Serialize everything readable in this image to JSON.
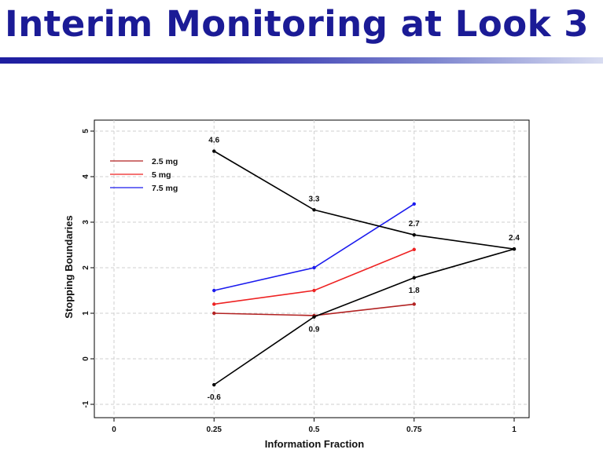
{
  "slide": {
    "title": "Interim Monitoring at Look 3"
  },
  "chart_data": {
    "type": "line",
    "title": "",
    "xlabel": "Information Fraction",
    "ylabel": "Stopping Boundaries",
    "xlim": [
      0,
      1
    ],
    "ylim": [
      -1,
      5
    ],
    "x_ticks": [
      {
        "value": 0,
        "label": "0"
      },
      {
        "value": 0.25,
        "label": "0.25"
      },
      {
        "value": 0.5,
        "label": "0.5"
      },
      {
        "value": 0.75,
        "label": "0.75"
      },
      {
        "value": 1,
        "label": "1"
      }
    ],
    "y_ticks": [
      {
        "value": -1,
        "label": "-1"
      },
      {
        "value": 0,
        "label": "0"
      },
      {
        "value": 1,
        "label": "1"
      },
      {
        "value": 2,
        "label": "2"
      },
      {
        "value": 3,
        "label": "3"
      },
      {
        "value": 4,
        "label": "4"
      },
      {
        "value": 5,
        "label": "5"
      }
    ],
    "grid": true,
    "legend_position": "top-left",
    "series": [
      {
        "name": "2.5 mg",
        "color": "#b22222",
        "x": [
          0.25,
          0.5,
          0.75
        ],
        "y": [
          1.0,
          0.95,
          1.2
        ],
        "in_legend": true
      },
      {
        "name": "5 mg",
        "color": "#ee2222",
        "x": [
          0.25,
          0.5,
          0.75
        ],
        "y": [
          1.2,
          1.5,
          2.4
        ],
        "in_legend": true
      },
      {
        "name": "7.5 mg",
        "color": "#1a1aee",
        "x": [
          0.25,
          0.5,
          0.75
        ],
        "y": [
          1.5,
          2.0,
          3.4
        ],
        "in_legend": true
      },
      {
        "color": "#000000",
        "x": [
          0.25,
          0.5,
          0.75,
          1.0
        ],
        "y": [
          4.56,
          3.27,
          2.72,
          2.41
        ],
        "in_legend": false
      },
      {
        "color": "#000000",
        "x": [
          0.25,
          0.5,
          0.75,
          1.0
        ],
        "y": [
          -0.57,
          0.92,
          1.78,
          2.41
        ],
        "in_legend": false
      }
    ],
    "annotations": [
      {
        "text": "4.6",
        "x": 0.25,
        "y": 4.56,
        "position": "above"
      },
      {
        "text": "3.3",
        "x": 0.5,
        "y": 3.27,
        "position": "above"
      },
      {
        "text": "2.7",
        "x": 0.75,
        "y": 2.72,
        "position": "above"
      },
      {
        "text": "2.4",
        "x": 1.0,
        "y": 2.41,
        "position": "above"
      },
      {
        "text": "-0.6",
        "x": 0.25,
        "y": -0.57,
        "position": "below"
      },
      {
        "text": "0.9",
        "x": 0.5,
        "y": 0.92,
        "position": "below"
      },
      {
        "text": "1.8",
        "x": 0.75,
        "y": 1.78,
        "position": "below"
      }
    ]
  }
}
